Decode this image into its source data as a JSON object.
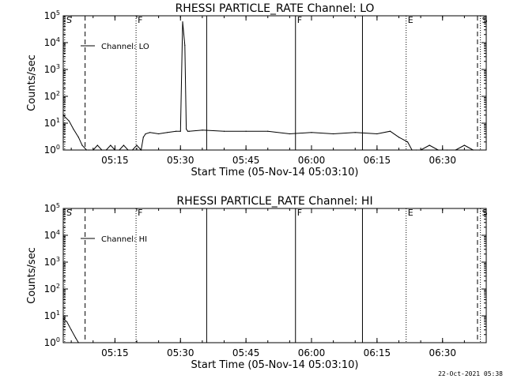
{
  "chart_data": [
    {
      "type": "line",
      "title": "RHESSI PARTICLE_RATE Channel: LO",
      "xlabel": "Start Time (05-Nov-14 05:03:10)",
      "ylabel": "Counts/sec",
      "y_scale": "log",
      "ylim": [
        1,
        100000
      ],
      "xlim": [
        "05:03:10",
        "06:40:00"
      ],
      "x_ticks": [
        "05:15",
        "05:30",
        "05:45",
        "06:00",
        "06:15",
        "06:30"
      ],
      "y_ticks": [
        "10^0",
        "10^1",
        "10^2",
        "10^3",
        "10^4",
        "10^5"
      ],
      "legend": "top-left",
      "grid": false,
      "series": [
        {
          "name": "Channel: LO",
          "x": [
            "05:03:10",
            "05:04:30",
            "05:05:30",
            "05:06:40",
            "05:07:30",
            "05:08:30",
            "05:09:00",
            "05:10:00",
            "05:11:00",
            "05:12:00",
            "05:13:00",
            "05:14:00",
            "05:15:00",
            "05:16:00",
            "05:17:00",
            "05:18:00",
            "05:19:00",
            "05:20:00",
            "05:21:00",
            "05:21:30",
            "05:22:00",
            "05:23:00",
            "05:25:00",
            "05:27:00",
            "05:29:00",
            "05:30:00",
            "05:30:30",
            "05:31:00",
            "05:31:20",
            "05:31:40",
            "05:32:00",
            "05:35:00",
            "05:40:00",
            "05:45:00",
            "05:50:00",
            "05:55:00",
            "06:00:00",
            "06:05:00",
            "06:10:00",
            "06:15:00",
            "06:18:00",
            "06:20:00",
            "06:22:00",
            "06:23:00",
            "06:24:00",
            "06:25:00",
            "06:27:00",
            "06:29:00",
            "06:31:00",
            "06:33:00",
            "06:35:00",
            "06:37:00",
            "06:38:30"
          ],
          "y": [
            20,
            12,
            6,
            3,
            1.5,
            1,
            1,
            1,
            1.5,
            1,
            1,
            1.5,
            1,
            1,
            1.5,
            1,
            1,
            1.5,
            1,
            3,
            4,
            4.5,
            4,
            4.5,
            5,
            5,
            60000,
            8000,
            6,
            5,
            5,
            5.5,
            5,
            5,
            5,
            4,
            4.5,
            4,
            4.5,
            4,
            5,
            3,
            2,
            1,
            1,
            1,
            1.5,
            1,
            1,
            1,
            1.5,
            1,
            1
          ]
        }
      ],
      "markers": [
        {
          "label": "S",
          "time": "05:03:30",
          "style": "dotted"
        },
        {
          "label": "",
          "time": "05:08:10",
          "style": "dashed"
        },
        {
          "label": "F",
          "time": "05:19:50",
          "style": "dotted"
        },
        {
          "label": "",
          "time": "05:36:00",
          "style": "solid"
        },
        {
          "label": "F",
          "time": "05:56:20",
          "style": "solid"
        },
        {
          "label": "",
          "time": "06:11:40",
          "style": "solid"
        },
        {
          "label": "E",
          "time": "06:21:40",
          "style": "dotted"
        },
        {
          "label": "",
          "time": "06:38:00",
          "style": "dashed"
        },
        {
          "label": "S",
          "time": "06:38:40",
          "style": "dotted"
        }
      ]
    },
    {
      "type": "line",
      "title": "RHESSI PARTICLE_RATE Channel: HI",
      "xlabel": "Start Time (05-Nov-14 05:03:10)",
      "ylabel": "Counts/sec",
      "y_scale": "log",
      "ylim": [
        1,
        100000
      ],
      "xlim": [
        "05:03:10",
        "06:40:00"
      ],
      "x_ticks": [
        "05:15",
        "05:30",
        "05:45",
        "06:00",
        "06:15",
        "06:30"
      ],
      "y_ticks": [
        "10^0",
        "10^1",
        "10^2",
        "10^3",
        "10^4",
        "10^5"
      ],
      "legend": "top-left",
      "grid": false,
      "series": [
        {
          "name": "Channel: HI",
          "x": [
            "05:03:10",
            "05:04:00",
            "05:05:00",
            "05:06:00",
            "05:06:40"
          ],
          "y": [
            8,
            6,
            3,
            1.5,
            1
          ]
        }
      ],
      "markers": [
        {
          "label": "S",
          "time": "05:03:30",
          "style": "dotted"
        },
        {
          "label": "",
          "time": "05:08:10",
          "style": "dashed"
        },
        {
          "label": "F",
          "time": "05:19:50",
          "style": "dotted"
        },
        {
          "label": "",
          "time": "05:36:00",
          "style": "solid"
        },
        {
          "label": "F",
          "time": "05:56:20",
          "style": "solid"
        },
        {
          "label": "",
          "time": "06:11:40",
          "style": "solid"
        },
        {
          "label": "E",
          "time": "06:21:40",
          "style": "dotted"
        },
        {
          "label": "",
          "time": "06:38:00",
          "style": "dashed"
        },
        {
          "label": "S",
          "time": "06:38:40",
          "style": "dotted"
        }
      ]
    }
  ],
  "footer_stamp": "22-Oct-2021 05:38"
}
